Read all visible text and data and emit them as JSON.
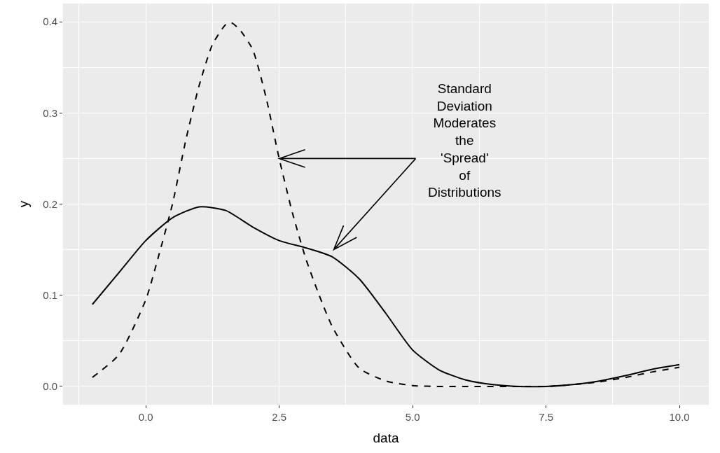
{
  "chart_data": {
    "type": "line",
    "xlabel": "data",
    "ylabel": "y",
    "xlim": [
      -1.55,
      10.55
    ],
    "xticks": [
      {
        "value": 0,
        "label": "0.0"
      },
      2.5,
      {
        "value": 5,
        "label": "5.0"
      },
      7.5,
      {
        "value": 10,
        "label": "10.0"
      }
    ],
    "ylim": [
      -0.02,
      0.42
    ],
    "yticks": [
      {
        "value": 0,
        "label": "0.0"
      },
      0.1,
      0.2,
      0.3,
      0.4
    ],
    "grid": true,
    "legend": false,
    "series": [
      {
        "color": "#000000",
        "line_style": "solid",
        "x": [
          -1,
          -0.5,
          0,
          0.5,
          1,
          1.5,
          2,
          2.5,
          3,
          3.5,
          4,
          4.5,
          5,
          5.5,
          6,
          6.5,
          7,
          7.5,
          8,
          8.5,
          9,
          9.5,
          10
        ],
        "values": [
          0.09,
          0.125,
          0.16,
          0.185,
          0.197,
          0.193,
          0.175,
          0.16,
          0.152,
          0.142,
          0.118,
          0.08,
          0.04,
          0.018,
          0.007,
          0.002,
          0.0,
          0.0,
          0.002,
          0.006,
          0.012,
          0.019,
          0.024
        ]
      },
      {
        "color": "#000000",
        "line_style": "dashed",
        "x": [
          -1,
          -0.5,
          0,
          0.25,
          0.5,
          0.75,
          1,
          1.25,
          1.5,
          1.6,
          1.75,
          2,
          2.25,
          2.5,
          2.75,
          3,
          3.25,
          3.5,
          4,
          4.5,
          5,
          5.5,
          6,
          7,
          7.5,
          8,
          8.5,
          9,
          9.5,
          10
        ],
        "values": [
          0.01,
          0.035,
          0.095,
          0.145,
          0.2,
          0.27,
          0.33,
          0.375,
          0.397,
          0.399,
          0.392,
          0.37,
          0.318,
          0.25,
          0.19,
          0.14,
          0.1,
          0.065,
          0.02,
          0.006,
          0.001,
          0.0,
          0.0,
          0.0,
          0.0,
          0.002,
          0.005,
          0.01,
          0.016,
          0.021
        ]
      }
    ],
    "annotations": [
      {
        "text": "Standard\nDeviation\nModerates\nthe\n'Spread'\nof\nDistributions",
        "x": 2.5,
        "y": 0.25
      }
    ]
  }
}
